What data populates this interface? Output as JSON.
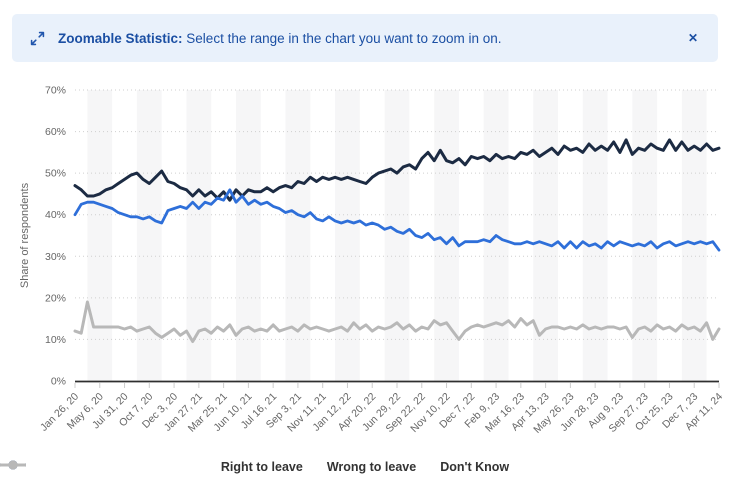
{
  "banner": {
    "label_bold": "Zoomable Statistic:",
    "label_text": "Select the range in the chart you want to zoom in on.",
    "close_glyph": "✕"
  },
  "colors": {
    "banner_bg": "#e9f1fb",
    "banner_text": "#1b4fa3",
    "accent_blue": "#2e6fd9",
    "axis_label": "#666666",
    "gridline": "#cfcfcf",
    "plot_band": "#f6f6f7",
    "axis_line": "#2f2f2f"
  },
  "chart_data": {
    "type": "line",
    "title": "",
    "xlabel": "",
    "ylabel": "Share of respondents",
    "ylim": [
      0,
      70
    ],
    "ytick_step": 10,
    "ytick_suffix": "%",
    "grid": "horizontal-dotted",
    "plot_bands": "alternating-vertical",
    "legend_position": "bottom",
    "points_per_label": 4,
    "x_labels": [
      "Jan 26, 20",
      "May 6, 20",
      "Jul 31, 20",
      "Oct 7, 20",
      "Dec 3, 20",
      "Jan 27, 21",
      "Mar 25, 21",
      "Jun 10, 21",
      "Jul 16, 21",
      "Sep 3, 21",
      "Nov 11, 21",
      "Jan 12, 22",
      "Apr 20, 22",
      "Jun 29, 22",
      "Sep 22, 22",
      "Nov 10, 22",
      "Dec 7, 22",
      "Feb 9, 23",
      "Mar 16, 23",
      "Apr 13, 23",
      "May 26, 23",
      "Jun 28, 23",
      "Aug 9, 23",
      "Sep 27, 23",
      "Oct 25, 23",
      "Dec 7, 23",
      "Apr 11, 24"
    ],
    "series": [
      {
        "name": "Right to leave",
        "color": "#2e6fd9",
        "values": [
          40,
          42.5,
          43,
          43,
          42.5,
          42,
          41.5,
          40.5,
          40,
          39.5,
          39.5,
          39,
          39.5,
          38.5,
          38,
          41,
          41.5,
          42,
          41.5,
          43,
          41.5,
          43,
          42.5,
          44,
          43.5,
          46,
          43,
          44.5,
          42.5,
          43.5,
          42.5,
          43,
          42,
          41.5,
          40.5,
          41,
          40,
          39.5,
          40.5,
          39,
          38.5,
          39.5,
          38.5,
          38,
          38.5,
          38,
          38.5,
          37.5,
          38,
          37.5,
          36.5,
          37,
          36,
          35.5,
          36.5,
          35,
          34.5,
          35.5,
          34,
          34.5,
          33,
          34.5,
          32.5,
          33.5,
          33.5,
          33.5,
          34,
          33.5,
          35,
          34,
          33.5,
          33,
          33,
          33.5,
          33,
          33.5,
          33,
          32.5,
          33.5,
          32,
          33.5,
          32,
          33.5,
          32.5,
          33,
          32,
          33.5,
          32.5,
          33.5,
          33,
          32.5,
          33,
          32.5,
          33.5,
          32,
          33,
          33.5,
          32.5,
          33,
          33.5,
          33,
          33.5,
          33,
          33.5,
          31.5
        ]
      },
      {
        "name": "Wrong to leave",
        "color": "#1c2b43",
        "values": [
          47,
          46,
          44.5,
          44.5,
          45,
          46,
          46.5,
          47.5,
          48.5,
          49.5,
          50,
          48.5,
          47.5,
          49,
          50.5,
          48,
          47.5,
          46.5,
          46,
          44.5,
          46,
          44.5,
          45.5,
          44,
          45.5,
          43.5,
          46,
          44.5,
          46,
          45.5,
          45.5,
          46.5,
          45.5,
          46.5,
          47,
          46.5,
          48,
          47.5,
          49,
          48,
          49,
          48.5,
          49,
          48.5,
          49,
          48.5,
          48,
          47.5,
          49,
          50,
          50.5,
          51,
          50,
          51.5,
          52,
          51,
          53.5,
          55,
          53,
          55.5,
          53,
          52.5,
          53.5,
          52,
          54,
          53.5,
          54,
          53,
          54.5,
          53.5,
          54,
          53.5,
          55,
          54.5,
          55.5,
          54,
          55,
          56,
          54.5,
          56.5,
          55.5,
          56,
          55,
          57,
          55.5,
          56.5,
          55.5,
          57.5,
          55,
          58,
          54.5,
          56,
          55.5,
          57,
          56,
          55.5,
          58,
          55.5,
          57.5,
          55.5,
          56.5,
          55.5,
          57,
          55.5,
          56
        ]
      },
      {
        "name": "Don't Know",
        "color": "#b8b8b8",
        "values": [
          12,
          11.5,
          19,
          13,
          13,
          13,
          13,
          13,
          12.5,
          13,
          12,
          12.5,
          13,
          11.5,
          10.5,
          11.5,
          12.5,
          11,
          12,
          9.5,
          12,
          12.5,
          11.5,
          13,
          12,
          13.5,
          11,
          12.5,
          13,
          12,
          12.5,
          12,
          13.5,
          12,
          12.5,
          13,
          12,
          13.5,
          12.5,
          13,
          12.5,
          12,
          12.5,
          13,
          12,
          14,
          12.5,
          13.5,
          12,
          13,
          12.5,
          13,
          14,
          12.5,
          13.5,
          12,
          13,
          12.5,
          14.5,
          13.5,
          14,
          12,
          10,
          12,
          13,
          13.5,
          13,
          13.5,
          14,
          13.5,
          14.5,
          13,
          15,
          13.5,
          14.5,
          11,
          12.5,
          13,
          13,
          12.5,
          13,
          12.5,
          13.5,
          12.5,
          13,
          12.5,
          13,
          13,
          12.5,
          13,
          10.5,
          12.5,
          13,
          12,
          13.5,
          12.5,
          13,
          12,
          13.5,
          12.5,
          13,
          12,
          14,
          10,
          12.5
        ]
      }
    ]
  }
}
